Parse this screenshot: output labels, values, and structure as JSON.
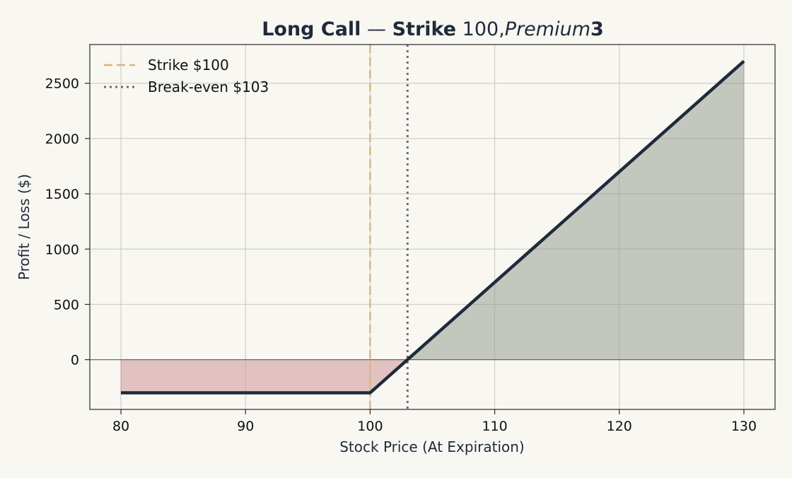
{
  "chart_data": {
    "type": "line",
    "title": {
      "part1": "Long Call",
      "dash": " — ",
      "part2": "Strike",
      "part3": " 100,",
      "part4": "Premium",
      "part5": "3"
    },
    "xlabel": "Stock Price (At Expiration)",
    "ylabel": "Profit / Loss ($)",
    "xlim": [
      77.5,
      132.5
    ],
    "ylim": [
      -450,
      2850
    ],
    "xticks": [
      80,
      90,
      100,
      110,
      120,
      130
    ],
    "yticks": [
      0,
      500,
      1000,
      1500,
      2000,
      2500
    ],
    "grid": true,
    "legend_position": "top-left",
    "series": [
      {
        "x": [
          80,
          100,
          103,
          130
        ],
        "y": [
          -300,
          -300,
          0,
          2700
        ],
        "color": "#1f2a3a"
      }
    ],
    "fills": {
      "loss_color": "#c98d8d",
      "profit_color": "#8d978a"
    },
    "reference_lines": [
      {
        "name": "Strike $100",
        "x": 100,
        "style": "dashed",
        "color": "#d9b47a"
      },
      {
        "name": "Break-even $103",
        "x": 103,
        "style": "dotted",
        "color": "#6e6e6e"
      }
    ],
    "zero_line_color": "#555555"
  }
}
